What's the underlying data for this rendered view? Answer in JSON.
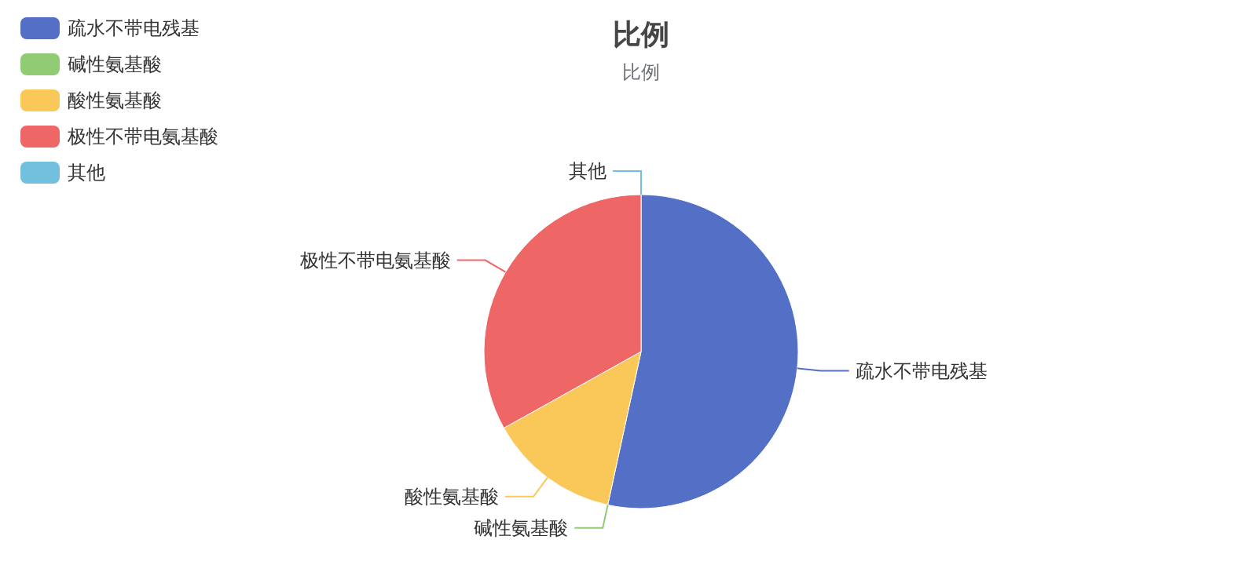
{
  "chart_data": {
    "type": "pie",
    "title": "比例",
    "subtitle": "比例",
    "categories": [
      "疏水不带电残基",
      "碱性氨基酸",
      "酸性氨基酸",
      "极性不带电氨基酸",
      "其他"
    ],
    "values": [
      53.4,
      0,
      13.5,
      33.1,
      0
    ],
    "colors": [
      "#5470c6",
      "#91cc75",
      "#fac858",
      "#ee6666",
      "#73c0de"
    ],
    "legend": "top left"
  }
}
